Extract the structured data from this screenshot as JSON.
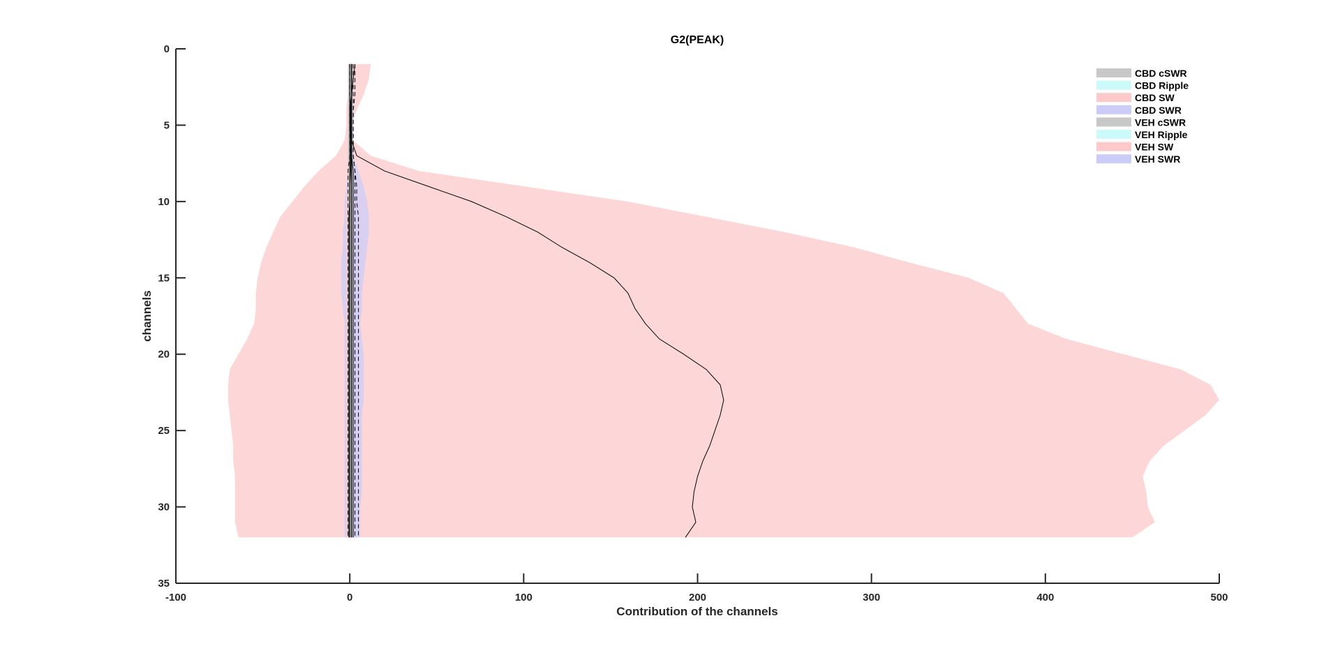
{
  "chart_data": {
    "type": "area",
    "title": "G2(PEAK)",
    "xlabel": "Contribution of the channels",
    "ylabel": "channels",
    "xlim": [
      -100,
      500
    ],
    "ylim": [
      0,
      35
    ],
    "y_reversed": true,
    "xticks": [
      -100,
      0,
      100,
      200,
      300,
      400,
      500
    ],
    "yticks": [
      0,
      5,
      10,
      15,
      20,
      25,
      30,
      35
    ],
    "grid": false,
    "legend_position": "top-right",
    "legend": [
      {
        "label": "CBD cSWR",
        "color": "#c8c8c8"
      },
      {
        "label": "CBD Ripple",
        "color": "#ccfafa"
      },
      {
        "label": "CBD SW",
        "color": "#fccaca"
      },
      {
        "label": "CBD SWR",
        "color": "#ccccf8"
      },
      {
        "label": "VEH cSWR",
        "color": "#c8c8c8"
      },
      {
        "label": "VEH Ripple",
        "color": "#ccfafa"
      },
      {
        "label": "VEH SW",
        "color": "#fccaca"
      },
      {
        "label": "VEH SWR",
        "color": "#ccccf8"
      }
    ],
    "channels": [
      1,
      2,
      3,
      4,
      5,
      6,
      7,
      8,
      9,
      10,
      11,
      12,
      13,
      14,
      15,
      16,
      17,
      18,
      19,
      20,
      21,
      22,
      23,
      24,
      25,
      26,
      27,
      28,
      29,
      30,
      31,
      32
    ],
    "series": [
      {
        "name": "VEH SW",
        "color": "#fccaca",
        "mean": [
          3,
          2,
          1,
          0,
          0,
          1,
          4,
          20,
          45,
          70,
          90,
          108,
          122,
          138,
          152,
          160,
          164,
          170,
          178,
          192,
          205,
          213,
          215,
          213,
          210,
          207,
          203,
          200,
          198,
          197,
          199,
          193
        ],
        "lower": [
          -1,
          -1,
          -1,
          -2,
          -2,
          -3,
          -8,
          -18,
          -26,
          -33,
          -40,
          -44,
          -48,
          -51,
          -53,
          -54,
          -54,
          -55,
          -59,
          -64,
          -69,
          -70,
          -70,
          -69,
          -68,
          -67,
          -67,
          -66,
          -66,
          -66,
          -66,
          -64
        ],
        "upper": [
          12,
          11,
          8,
          4,
          1,
          2,
          12,
          40,
          100,
          160,
          205,
          250,
          290,
          322,
          356,
          376,
          383,
          390,
          412,
          445,
          478,
          495,
          500,
          492,
          480,
          468,
          460,
          456,
          458,
          459,
          463,
          450
        ]
      },
      {
        "name": "CBD SWR",
        "color": "#ccccf8",
        "mean": [
          1,
          1,
          1,
          1,
          1,
          1,
          1,
          2,
          2,
          2,
          2,
          2,
          2,
          2,
          2,
          2,
          2,
          2,
          2,
          2,
          2,
          2,
          2,
          2,
          2,
          2,
          2,
          2,
          2,
          2,
          2,
          2
        ],
        "lower": [
          -0.5,
          -0.5,
          -0.5,
          -0.5,
          -0.5,
          -1,
          -1,
          -1,
          -2,
          -3,
          -3,
          -4,
          -4,
          -5,
          -5,
          -5,
          -4,
          -3,
          -3,
          -3,
          -3,
          -3,
          -3,
          -3,
          -3,
          -3,
          -3,
          -3,
          -3,
          -3,
          -3,
          -3
        ],
        "upper": [
          2,
          2,
          2,
          2,
          2,
          2,
          2,
          5,
          8,
          10,
          11,
          11,
          10,
          9,
          8,
          7,
          7,
          6,
          7,
          8,
          8,
          8,
          8,
          7,
          7,
          7,
          7,
          7,
          7,
          6,
          6,
          6
        ]
      },
      {
        "name": "VEH SWR",
        "color": "#ccccf8",
        "mean": [
          1,
          1,
          1,
          1,
          1,
          1,
          1,
          1,
          1,
          1,
          1,
          1,
          1,
          1,
          1,
          1,
          1,
          1,
          1,
          1,
          1,
          1,
          1,
          1,
          1,
          1,
          1,
          1,
          1,
          1,
          1,
          1
        ],
        "lower": [
          0,
          0,
          0,
          0,
          0,
          0,
          0,
          -1,
          -1,
          -1,
          -2,
          -2,
          -2,
          -2,
          -2,
          -2,
          -2,
          -2,
          -2,
          -2,
          -2,
          -2,
          -2,
          -2,
          -2,
          -2,
          -2,
          -2,
          -2,
          -2,
          -2,
          -2
        ],
        "upper": [
          2,
          2,
          2,
          2,
          2,
          2,
          2,
          3,
          3,
          4,
          4,
          4,
          4,
          4,
          4,
          4,
          4,
          4,
          4,
          4,
          4,
          4,
          4,
          4,
          4,
          4,
          4,
          4,
          4,
          4,
          4,
          4
        ]
      },
      {
        "name": "CBD SW",
        "color": "#fccaca",
        "mean": [
          1,
          1,
          1,
          0.5,
          0.5,
          0.5,
          0.5,
          0.5,
          0,
          0,
          -0.5,
          -0.5,
          -0.5,
          -0.5,
          -0.5,
          -0.5,
          -0.5,
          -0.5,
          -0.5,
          -0.5,
          -0.5,
          -0.5,
          -0.5,
          -0.5,
          -0.5,
          -0.5,
          -0.5,
          -0.5,
          -0.5,
          -0.5,
          -0.5,
          -0.5
        ],
        "lower": [
          0,
          0,
          0,
          0,
          0,
          0,
          0,
          -1,
          -1,
          -2,
          -2,
          -2,
          -2,
          -2,
          -2,
          -2,
          -2,
          -2,
          -2,
          -2,
          -2,
          -2,
          -2,
          -2,
          -2,
          -2,
          -2,
          -2,
          -2,
          -2,
          -2,
          -2
        ],
        "upper": [
          2,
          2,
          2,
          1,
          1,
          1,
          1,
          2,
          2,
          2,
          2,
          2,
          2,
          2,
          2,
          2,
          2,
          2,
          2,
          2,
          2,
          2,
          2,
          2,
          2,
          2,
          2,
          2,
          2,
          2,
          2,
          2
        ]
      },
      {
        "name": "CBD cSWR",
        "color": "#c8c8c8",
        "mean": [
          0,
          0,
          0,
          0,
          0,
          0,
          0,
          0,
          0,
          0,
          0,
          0,
          0,
          0,
          0,
          0,
          0,
          0,
          0,
          0,
          0,
          0,
          0,
          0,
          0,
          0,
          0,
          0,
          0,
          0,
          0,
          0
        ],
        "lower": [
          -1,
          -1,
          -1,
          -1,
          -1,
          -1,
          -1,
          -1,
          -1,
          -1,
          -1,
          -1,
          -1,
          -1,
          -1,
          -1,
          -1,
          -1,
          -1,
          -1,
          -1,
          -1,
          -1,
          -1,
          -1,
          -1,
          -1,
          -1,
          -1,
          -1,
          -1,
          -1
        ],
        "upper": [
          1,
          1,
          1,
          1,
          1,
          1,
          1,
          1,
          1,
          1,
          1,
          1,
          1,
          1,
          1,
          1,
          1,
          1,
          1,
          1,
          1,
          1,
          1,
          1,
          1,
          1,
          1,
          1,
          1,
          1,
          1,
          1
        ]
      },
      {
        "name": "VEH cSWR",
        "color": "#c8c8c8",
        "mean": [
          1,
          1,
          1,
          1,
          1,
          1,
          1,
          1,
          1,
          1,
          1,
          1,
          1,
          1,
          1,
          1,
          1,
          1,
          1,
          1,
          1,
          1,
          1,
          1,
          1,
          1,
          1,
          1,
          1,
          1,
          1,
          1
        ],
        "lower": [
          0,
          0,
          0,
          0,
          0,
          0,
          0,
          0,
          0,
          0,
          0,
          0,
          0,
          0,
          0,
          0,
          0,
          0,
          0,
          0,
          0,
          0,
          0,
          0,
          0,
          0,
          0,
          0,
          0,
          0,
          0,
          0
        ],
        "upper": [
          2,
          2,
          2,
          2,
          2,
          2,
          2,
          2,
          2,
          2,
          2,
          2,
          2,
          2,
          2,
          2,
          2,
          2,
          2,
          2,
          2,
          2,
          2,
          2,
          2,
          2,
          2,
          2,
          2,
          2,
          2,
          2
        ]
      }
    ],
    "dashed_lines": [
      [
        0,
        0,
        0,
        0,
        0,
        0,
        0,
        -1,
        -1,
        -1,
        -1,
        -1,
        -1,
        -1,
        -1,
        -1,
        -1,
        -1,
        -1,
        -1,
        -1,
        -1,
        -1,
        -1,
        -1,
        -1,
        -1,
        -1,
        -1,
        -1,
        -1,
        -1
      ],
      [
        2,
        2,
        2,
        2,
        2,
        2,
        2,
        3,
        3,
        3,
        3,
        3,
        3,
        3,
        3,
        3,
        3,
        3,
        3,
        3,
        3,
        3,
        3,
        3,
        3,
        3,
        3,
        3,
        3,
        3,
        3,
        3
      ],
      [
        3,
        3,
        3,
        2,
        2,
        2,
        2,
        3,
        4,
        4,
        5,
        5,
        5,
        5,
        5,
        5,
        5,
        5,
        5,
        5,
        5,
        5,
        5,
        5,
        5,
        5,
        5,
        5,
        5,
        5,
        5,
        5
      ]
    ]
  }
}
